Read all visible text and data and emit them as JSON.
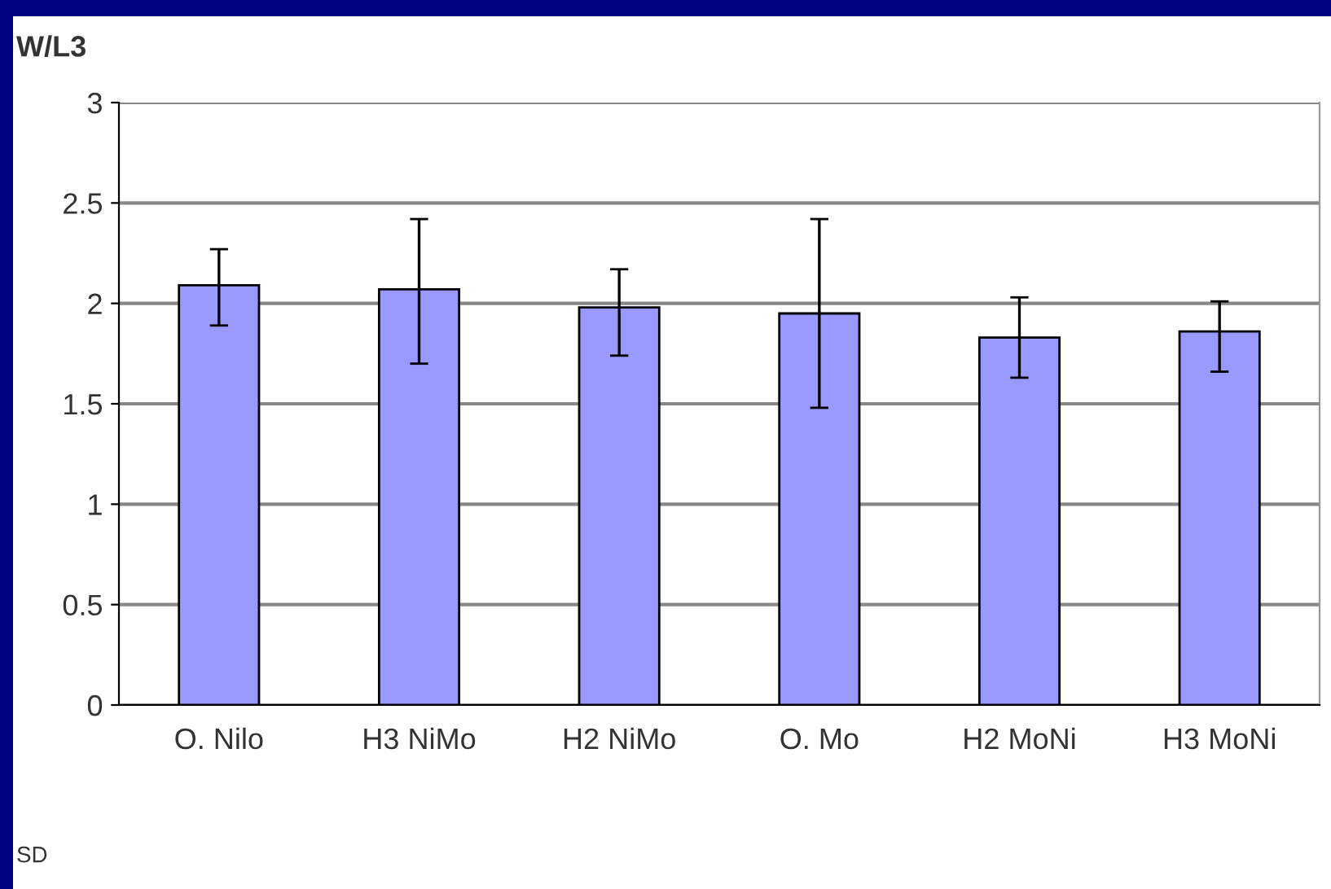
{
  "chart_data": {
    "type": "bar",
    "ylabel": "W/L3",
    "categories": [
      "O. Nilo",
      "H3 NiMo",
      "H2 NiMo",
      "O. Mo",
      "H2 MoNi",
      "H3 MoNi"
    ],
    "values": [
      2.09,
      2.07,
      1.98,
      1.95,
      1.83,
      1.86
    ],
    "errors": [
      [
        1.89,
        2.27
      ],
      [
        1.7,
        2.42
      ],
      [
        1.74,
        2.17
      ],
      [
        1.48,
        2.42
      ],
      [
        1.63,
        2.03
      ],
      [
        1.66,
        2.01
      ]
    ],
    "color": "#9999ff",
    "ylim": [
      0,
      3
    ],
    "yticks": [
      0,
      0.5,
      1,
      1.5,
      2,
      2.5,
      3
    ],
    "grid": "y",
    "annotations": [
      "SD"
    ]
  }
}
